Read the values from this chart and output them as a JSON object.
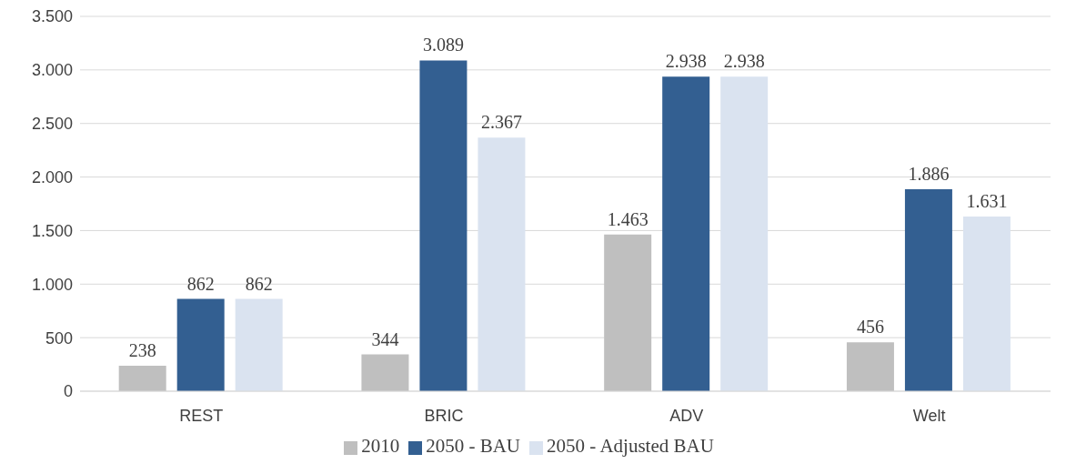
{
  "chart_data": {
    "type": "bar",
    "categories": [
      "REST",
      "BRIC",
      "ADV",
      "Welt"
    ],
    "series": [
      {
        "name": "2010",
        "color": "#bfbfbf",
        "values": [
          238,
          344,
          1463,
          456
        ],
        "value_labels": [
          "238",
          "344",
          "1.463",
          "456"
        ]
      },
      {
        "name": "2050 - BAU",
        "color": "#335f91",
        "values": [
          862,
          3089,
          2938,
          1886
        ],
        "value_labels": [
          "862",
          "3.089",
          "2.938",
          "1.886"
        ]
      },
      {
        "name": "2050 - Adjusted BAU",
        "color": "#dae3f0",
        "values": [
          862,
          2367,
          2938,
          1631
        ],
        "value_labels": [
          "862",
          "2.367",
          "2.938",
          "1.631"
        ]
      }
    ],
    "ylim": [
      0,
      3500
    ],
    "yticks": [
      0,
      {
        "value": 500,
        "label": "500"
      },
      {
        "value": 1000,
        "label": "1.000"
      },
      {
        "value": 1500,
        "label": "1.500"
      },
      {
        "value": 2000,
        "label": "2.000"
      },
      {
        "value": 2500,
        "label": "2.500"
      },
      {
        "value": 3000,
        "label": "3.000"
      },
      {
        "value": 3500,
        "label": "3.500"
      }
    ],
    "grid": "y",
    "legend": "bottom"
  }
}
